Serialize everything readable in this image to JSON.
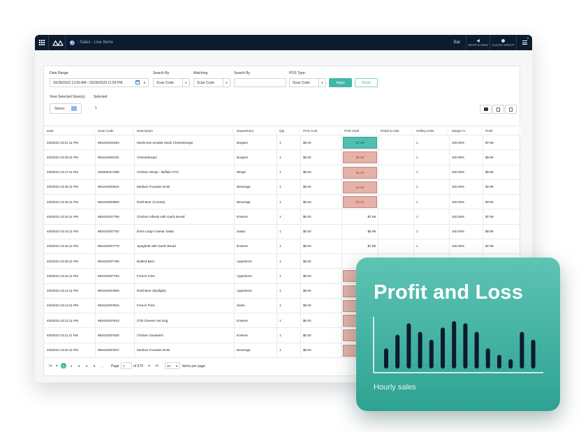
{
  "topbar": {
    "breadcrumb": ": Sales - Live Items",
    "bar_label": "Bar",
    "whats_new": "WHAT'S NEW",
    "clock": "CLOCK IN/OUT",
    "menu_badge": "0"
  },
  "filters": {
    "date_range_label": "Date Range",
    "date_range_value": "03/28/2023 12:00 AM - 03/28/2023 11:59 PM",
    "search_by_label": "Search By",
    "search_by_value": "Scan Code",
    "matching_label": "Matching",
    "matching_value": "Scan Code",
    "search_by2_label": "Search By",
    "search_by2_value": "",
    "pos_type_label": "POS Type:",
    "pos_type_value": "Scan Code",
    "apply": "Apply",
    "reset": "Reset",
    "view_selected_label": "View Selected Store(s)",
    "selected_label": "Selected",
    "stores_button": "Stores",
    "selected_count": "1"
  },
  "table": {
    "headers": [
      "Date",
      "Scan Code",
      "Description",
      "Department",
      "Qty",
      "POS Cost",
      "POS retail",
      "Retail at sale",
      "Selling Units",
      "Margin %",
      "Profit"
    ],
    "rows": [
      {
        "date": "4/5/2023 10:51:11 PM",
        "scan": "993410001593",
        "desc": "Mushroom Double Stack Cheeseburger",
        "dept": "Burgers",
        "qty": "1",
        "cost": "$0.00",
        "retail": "$7.99",
        "style": "up",
        "units": "1",
        "margin": "100.00%",
        "profit": "$7.99"
      },
      {
        "date": "4/5/2023 10:49:11 PM",
        "scan": "993410000191",
        "desc": "Cheeseburger",
        "dept": "Burgers",
        "qty": "1",
        "cost": "$0.00",
        "retail": "$8.99",
        "style": "down",
        "units": "1",
        "margin": "100.00%",
        "profit": "$8.99"
      },
      {
        "date": "4/5/2023 10:47:11 PM",
        "scan": "025900227399",
        "desc": "Chicken Wings - Buffalo 6 PC",
        "dept": "Wings",
        "qty": "1",
        "cost": "$0.00",
        "retail": "$5.99",
        "style": "down",
        "units": "1",
        "margin": "100.00%",
        "profit": "$5.99"
      },
      {
        "date": "4/5/2023 10:46:11 PM",
        "scan": "993410003634",
        "desc": "Medium Fountain Drink",
        "dept": "Beverage",
        "qty": "1",
        "cost": "$0.00",
        "retail": "$2.99",
        "style": "down",
        "units": "1",
        "margin": "100.00%",
        "profit": "$2.99"
      },
      {
        "date": "4/5/2023 10:45:11 PM",
        "scan": "993410003993",
        "desc": "Draft Beer (Corona)",
        "dept": "Beverage",
        "qty": "1",
        "cost": "$0.00",
        "retail": "$3.99",
        "style": "down",
        "units": "1",
        "margin": "100.00%",
        "profit": "$3.99"
      },
      {
        "date": "4/5/2023 10:44:11 PM",
        "scan": "993410007755",
        "desc": "Chicken Alfredo with Garlic Bread",
        "dept": "Entrees",
        "qty": "1",
        "cost": "$0.00",
        "retail": "$7.99",
        "style": "plain",
        "units": "1",
        "margin": "100.00%",
        "profit": "$7.99"
      },
      {
        "date": "4/5/2023 10:43:11 PM",
        "scan": "993410007762",
        "desc": "Extra Large Caesar Salad",
        "dept": "Salad",
        "qty": "1",
        "cost": "$0.00",
        "retail": "$8.99",
        "style": "plain",
        "units": "1",
        "margin": "100.00%",
        "profit": "$8.99"
      },
      {
        "date": "4/5/2023 10:42:11 PM",
        "scan": "993410007779",
        "desc": "Spaghetti with Garlic Bread",
        "dept": "Entrees",
        "qty": "1",
        "cost": "$0.00",
        "retail": "$7.99",
        "style": "plain",
        "units": "1",
        "margin": "100.00%",
        "profit": "$7.99"
      },
      {
        "date": "4/5/2023 10:39:11 PM",
        "scan": "993410007786",
        "desc": "Bottled Beer",
        "dept": "Appetizers",
        "qty": "1",
        "cost": "$0.00",
        "retail": "",
        "style": "none",
        "units": "",
        "margin": "",
        "profit": ""
      },
      {
        "date": "4/5/2023 10:15:11 PM",
        "scan": "993410007793",
        "desc": "French Fries",
        "dept": "Appetizers",
        "qty": "1",
        "cost": "$0.00",
        "retail": "",
        "style": "down-empty",
        "units": "",
        "margin": "",
        "profit": ""
      },
      {
        "date": "4/5/2023 10:14:11 PM",
        "scan": "993410007809",
        "desc": "Draft Beer (Budlight)",
        "dept": "Appetizers",
        "qty": "1",
        "cost": "$0.00",
        "retail": "",
        "style": "down-empty",
        "units": "",
        "margin": "",
        "profit": ""
      },
      {
        "date": "4/5/2023 10:13:11 PM",
        "scan": "993410007816",
        "desc": "French Fries",
        "dept": "Sides",
        "qty": "1",
        "cost": "$0.00",
        "retail": "",
        "style": "down-empty",
        "units": "",
        "margin": "",
        "profit": ""
      },
      {
        "date": "4/5/2023 10:12:11 PM",
        "scan": "993410007823",
        "desc": "Chili Cheese Hot Dog",
        "dept": "Entrees",
        "qty": "1",
        "cost": "$0.00",
        "retail": "",
        "style": "down-empty",
        "units": "",
        "margin": "",
        "profit": ""
      },
      {
        "date": "4/5/2023 10:11:11 PM",
        "scan": "993410007830",
        "desc": "Chicken Sandwich",
        "dept": "Entrees",
        "qty": "1",
        "cost": "$0.00",
        "retail": "",
        "style": "down-empty",
        "units": "",
        "margin": "",
        "profit": ""
      },
      {
        "date": "4/5/2023 10:02:11 PM",
        "scan": "993410007847",
        "desc": "Medium Fountain Drink",
        "dept": "Beverage",
        "qty": "1",
        "cost": "$0.00",
        "retail": "",
        "style": "down-empty",
        "units": "",
        "margin": "",
        "profit": ""
      }
    ]
  },
  "pager": {
    "pages": [
      "1",
      "2",
      "3",
      "4",
      "5",
      "..."
    ],
    "first": "|◂",
    "prev": "◂",
    "next": "▸",
    "last": "▸|",
    "page_label": "Page",
    "page_value": "1",
    "of_total": "of 379",
    "per_page_value": "20",
    "per_page_label": "items per page"
  },
  "card": {
    "title": "Profit and Loss",
    "subtitle": "Hourly sales"
  },
  "chart_data": {
    "type": "bar",
    "title": "Profit and Loss",
    "xlabel": "Hourly sales",
    "ylabel": "",
    "values": [
      28,
      47,
      63,
      51,
      40,
      57,
      66,
      63,
      51,
      28,
      19,
      13,
      51,
      40
    ],
    "ylim": [
      0,
      70
    ],
    "bar_color": "#0d1b2e",
    "axis_color": "#ffffff",
    "grid": false
  },
  "colors": {
    "accent": "#3fb8a8",
    "topbar": "#0d1b2e",
    "retail_up": "#4fbfb0",
    "retail_down": "#e5b2a8"
  }
}
